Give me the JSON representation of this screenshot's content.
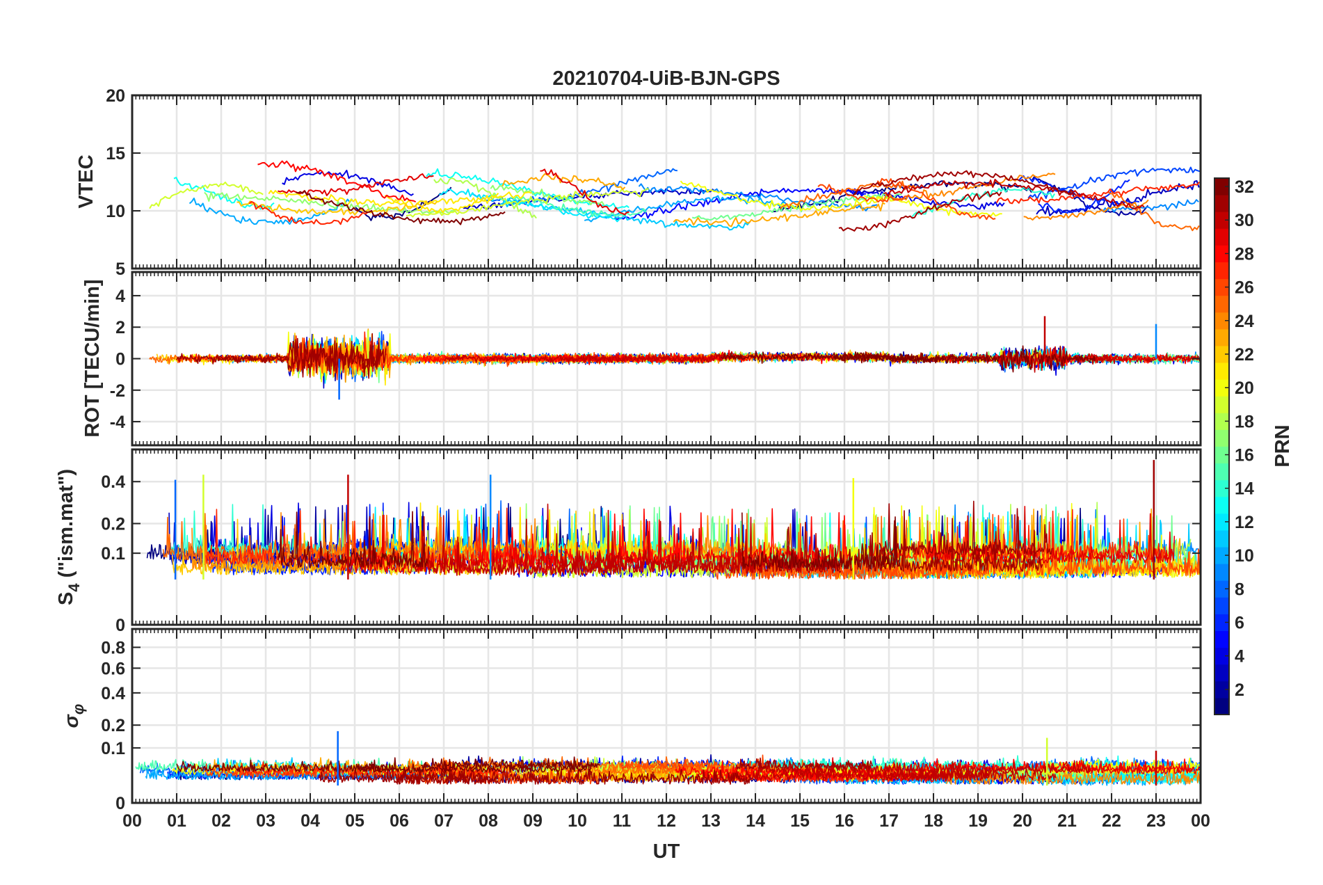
{
  "chart_data": {
    "type": "line",
    "title": "20210704-UiB-BJN-GPS",
    "xlabel": "UT",
    "x_range_hours": [
      0,
      24
    ],
    "x_ticks": [
      "00",
      "01",
      "02",
      "03",
      "04",
      "05",
      "06",
      "07",
      "08",
      "09",
      "10",
      "11",
      "12",
      "13",
      "14",
      "15",
      "16",
      "17",
      "18",
      "19",
      "20",
      "21",
      "22",
      "23",
      "00"
    ],
    "grid": true,
    "colormap": "jet",
    "colorbar": {
      "label": "PRN",
      "range": [
        1,
        32
      ],
      "ticks": [
        "2",
        "4",
        "6",
        "8",
        "10",
        "12",
        "14",
        "16",
        "18",
        "20",
        "22",
        "24",
        "26",
        "28",
        "30",
        "32"
      ],
      "placement": "right"
    },
    "panels": [
      {
        "id": "vtec",
        "ylabel": "VTEC",
        "ylim": [
          5,
          20
        ],
        "yticks": [
          5,
          10,
          15,
          20
        ],
        "ytick_labels": [
          "5",
          "10",
          "15",
          "20"
        ],
        "series_model": "slow_arcs",
        "value_range_observed": [
          8,
          15.5
        ]
      },
      {
        "id": "rot",
        "ylabel": "ROT [TECU/min]",
        "ylim": [
          -5.5,
          5.5
        ],
        "yticks": [
          -4,
          -2,
          0,
          2,
          4
        ],
        "ytick_labels": [
          "-4",
          "-2",
          "0",
          "2",
          "4"
        ],
        "series_model": "noise_about_zero",
        "notable_peaks": [
          {
            "hour": 4.65,
            "value": -2.6
          },
          {
            "hour": 5.3,
            "value": 1.8
          },
          {
            "hour": 20.5,
            "value": 2.7
          },
          {
            "hour": 23.0,
            "value": 2.2
          }
        ]
      },
      {
        "id": "s4",
        "ylabel": "S4 (\"ism.mat\")",
        "ylabel_main": "S",
        "ylabel_sub": "4",
        "ylabel_rest": " (\"ism.mat\")",
        "ylim": [
          0,
          0.6
        ],
        "yticks": [
          0,
          0.1,
          0.2,
          0.4
        ],
        "ytick_labels": [
          "0",
          "0.1",
          "0.2",
          "0.4"
        ],
        "yscale": "sqrt",
        "series_model": "spiky_baseline",
        "baseline_range": [
          0.04,
          0.1
        ],
        "notable_peaks": [
          {
            "hour": 0.97,
            "value": 0.41
          },
          {
            "hour": 1.6,
            "value": 0.44
          },
          {
            "hour": 4.85,
            "value": 0.44
          },
          {
            "hour": 8.05,
            "value": 0.44
          },
          {
            "hour": 16.2,
            "value": 0.42
          },
          {
            "hour": 22.95,
            "value": 0.53
          }
        ]
      },
      {
        "id": "sigma_phi",
        "ylabel": "σφ",
        "ylabel_main": "σ",
        "ylabel_sub": "φ",
        "ylim": [
          0,
          1
        ],
        "yticks": [
          0,
          0.1,
          0.2,
          0.4,
          0.6,
          0.8
        ],
        "ytick_labels": [
          "0",
          "0.1",
          "0.2",
          "0.4",
          "0.6",
          "0.8"
        ],
        "yscale": "sqrt",
        "series_model": "low_baseline",
        "baseline_range": [
          0.01,
          0.04
        ],
        "notable_peaks": [
          {
            "hour": 4.62,
            "value": 0.17
          },
          {
            "hour": 20.55,
            "value": 0.14
          },
          {
            "hour": 23.0,
            "value": 0.09
          }
        ]
      }
    ]
  }
}
